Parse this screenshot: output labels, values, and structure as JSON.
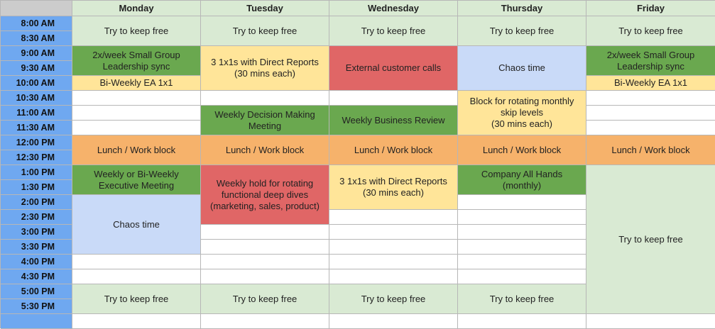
{
  "days": [
    "Monday",
    "Tuesday",
    "Wednesday",
    "Thursday",
    "Friday"
  ],
  "times": [
    "8:00 AM",
    "8:30 AM",
    "9:00 AM",
    "9:30 AM",
    "10:00 AM",
    "10:30 AM",
    "11:00 AM",
    "11:30 AM",
    "12:00 PM",
    "12:30 PM",
    "1:00 PM",
    "1:30 PM",
    "2:00 PM",
    "2:30 PM",
    "3:00 PM",
    "3:30 PM",
    "4:00 PM",
    "4:30 PM",
    "5:00 PM",
    "5:30 PM"
  ],
  "colors": {
    "light_green": "#d9ead3",
    "green": "#6aa84f",
    "yellow": "#ffe599",
    "red": "#e06666",
    "blue": "#c9daf8",
    "orange": "#f6b26b",
    "time_column": "#6fa8f0",
    "corner": "#cccccc"
  },
  "events": {
    "mon_keep_free_am": "Try to keep free",
    "mon_small_group": "2x/week Small Group\nLeadership sync",
    "mon_ea": "Bi-Weekly EA 1x1",
    "mon_lunch": "Lunch / Work block",
    "mon_exec": "Weekly or Bi-Weekly\nExecutive Meeting",
    "mon_chaos": "Chaos time",
    "mon_keep_free_pm": "Try to keep free",
    "tue_keep_free_am": "Try to keep free",
    "tue_1x1s": "3 1x1s with Direct Reports\n(30 mins each)",
    "tue_decision": "Weekly Decision Making\nMeeting",
    "tue_lunch": "Lunch / Work block",
    "tue_deep_dives": "Weekly hold for rotating\nfunctional deep dives\n(marketing, sales, product)",
    "tue_keep_free_pm": "Try to keep free",
    "wed_keep_free_am": "Try to keep free",
    "wed_customer": "External customer calls",
    "wed_business_review": "Weekly Business Review",
    "wed_lunch": "Lunch / Work block",
    "wed_1x1s": "3 1x1s with Direct Reports\n(30 mins each)",
    "wed_keep_free_pm": "Try to keep free",
    "thu_keep_free_am": "Try to keep free",
    "thu_chaos": "Chaos time",
    "thu_skip": "Block for rotating monthly\nskip levels\n(30 mins each)",
    "thu_lunch": "Lunch / Work block",
    "thu_all_hands": "Company All Hands\n(monthly)",
    "thu_keep_free_pm": "Try to keep free",
    "fri_keep_free_am": "Try to keep free",
    "fri_small_group": "2x/week Small Group\nLeadership sync",
    "fri_ea": "Bi-Weekly EA 1x1",
    "fri_lunch": "Lunch / Work block",
    "fri_keep_free_pm": "Try to keep free"
  }
}
